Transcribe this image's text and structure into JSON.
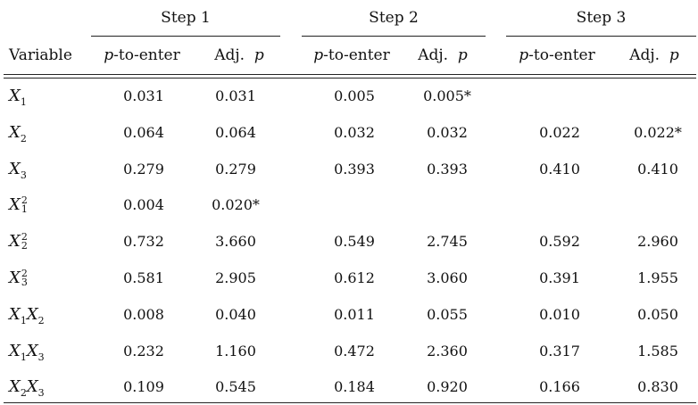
{
  "table": {
    "groups": [
      {
        "label": "Step 1"
      },
      {
        "label": "Step 2"
      },
      {
        "label": "Step 3"
      }
    ],
    "variable_header": "Variable",
    "columns": [
      {
        "label": "p-to-enter"
      },
      {
        "label": "Adj. p"
      },
      {
        "label": "p-to-enter"
      },
      {
        "label": "Adj. p"
      },
      {
        "label": "p-to-enter"
      },
      {
        "label": "Adj. p"
      }
    ],
    "rows": [
      {
        "var": {
          "base": "X",
          "sub": "1",
          "sup": "",
          "base2": "",
          "sub2": ""
        },
        "values": [
          "0.031",
          "0.031",
          "0.005",
          "0.005*",
          "",
          ""
        ]
      },
      {
        "var": {
          "base": "X",
          "sub": "2",
          "sup": "",
          "base2": "",
          "sub2": ""
        },
        "values": [
          "0.064",
          "0.064",
          "0.032",
          "0.032",
          "0.022",
          "0.022*"
        ]
      },
      {
        "var": {
          "base": "X",
          "sub": "3",
          "sup": "",
          "base2": "",
          "sub2": ""
        },
        "values": [
          "0.279",
          "0.279",
          "0.393",
          "0.393",
          "0.410",
          "0.410"
        ]
      },
      {
        "var": {
          "base": "X",
          "sub": "1",
          "sup": "2",
          "base2": "",
          "sub2": ""
        },
        "values": [
          "0.004",
          "0.020*",
          "",
          "",
          "",
          ""
        ]
      },
      {
        "var": {
          "base": "X",
          "sub": "2",
          "sup": "2",
          "base2": "",
          "sub2": ""
        },
        "values": [
          "0.732",
          "3.660",
          "0.549",
          "2.745",
          "0.592",
          "2.960"
        ]
      },
      {
        "var": {
          "base": "X",
          "sub": "3",
          "sup": "2",
          "base2": "",
          "sub2": ""
        },
        "values": [
          "0.581",
          "2.905",
          "0.612",
          "3.060",
          "0.391",
          "1.955"
        ]
      },
      {
        "var": {
          "base": "X",
          "sub": "1",
          "sup": "",
          "base2": "X",
          "sub2": "2"
        },
        "values": [
          "0.008",
          "0.040",
          "0.011",
          "0.055",
          "0.010",
          "0.050"
        ]
      },
      {
        "var": {
          "base": "X",
          "sub": "1",
          "sup": "",
          "base2": "X",
          "sub2": "3"
        },
        "values": [
          "0.232",
          "1.160",
          "0.472",
          "2.360",
          "0.317",
          "1.585"
        ]
      },
      {
        "var": {
          "base": "X",
          "sub": "2",
          "sup": "",
          "base2": "X",
          "sub2": "3"
        },
        "values": [
          "0.109",
          "0.545",
          "0.184",
          "0.920",
          "0.166",
          "0.830"
        ]
      }
    ]
  }
}
